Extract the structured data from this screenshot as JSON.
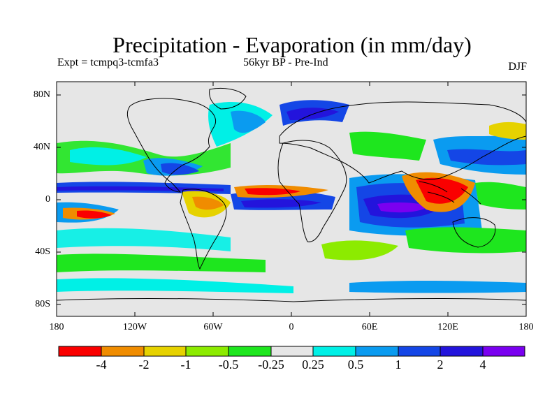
{
  "title": "Precipitation - Evaporation (in mm/day)",
  "subtitle_left": "Expt = tcmpq3-tcmfa3",
  "subtitle_center": "56kyr BP - Pre-Ind",
  "season": "DJF",
  "map": {
    "projection": "cylindrical equidistant",
    "lon_range": [
      -180,
      180
    ],
    "lat_range": [
      -90,
      90
    ],
    "lat_tick_labels": [
      "80N",
      "40N",
      "0",
      "40S",
      "80S"
    ],
    "lon_tick_labels": [
      "180",
      "120W",
      "60W",
      "0",
      "60E",
      "120E",
      "180"
    ],
    "background_color": "#e6e6e6",
    "coastline_color": "#000000"
  },
  "colorbar": {
    "labels": [
      "-4",
      "-2",
      "-1",
      "-0.5",
      "-0.25",
      "0.25",
      "0.5",
      "1",
      "2",
      "4"
    ],
    "colors": [
      "#fa0000",
      "#f08c00",
      "#e6d200",
      "#8ceb00",
      "#1ee61e",
      "#e6e6e6",
      "#00f0e6",
      "#0a9bf0",
      "#1446e6",
      "#2314dc",
      "#7a00f0"
    ]
  },
  "regions": [
    {
      "name": "w-pacific-warm-pool",
      "level": "-4",
      "lon": 110,
      "lat": 5
    },
    {
      "name": "indian-ocean",
      "level": "4",
      "lon": 75,
      "lat": -10
    },
    {
      "name": "equatorial-atlantic",
      "level": "4",
      "lon": -25,
      "lat": -2
    },
    {
      "name": "south-pacific-itcz",
      "level": "-2",
      "lon": -150,
      "lat": -12
    }
  ]
}
